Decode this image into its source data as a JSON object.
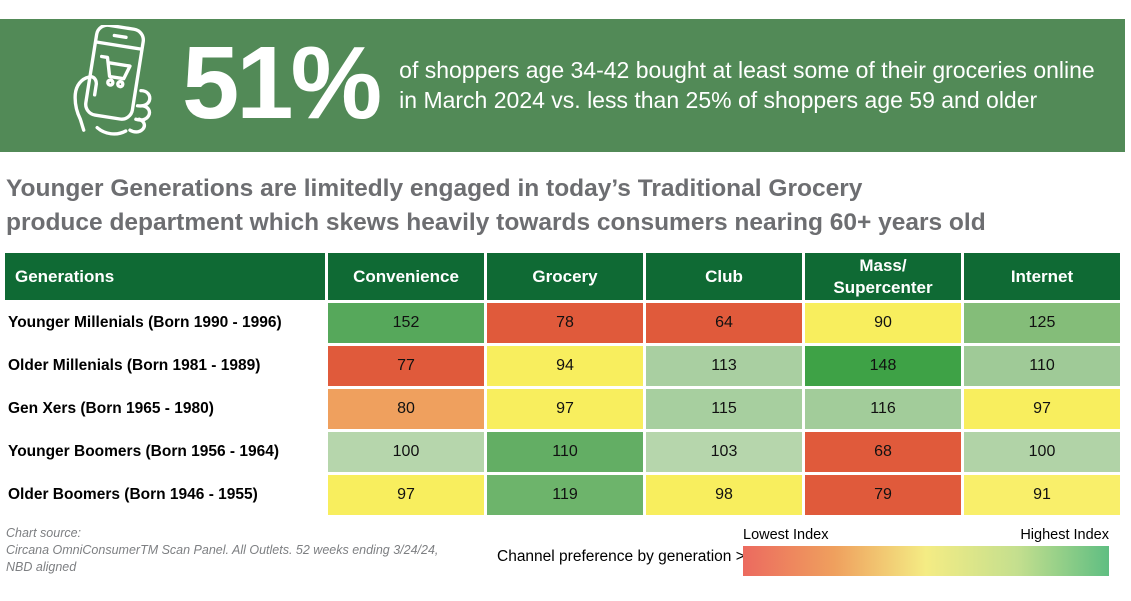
{
  "banner": {
    "bg_color": "#528a57",
    "icon": "phone-shopping-cart-in-hand-icon",
    "stat": "51%",
    "description_line1": "of shoppers age 34-42 bought at least some of their groceries online",
    "description_line2": "in March 2024 vs. less than 25% of shoppers age 59 and older"
  },
  "headline": {
    "line1": "Younger Generations are limitedly engaged in today’s Traditional Grocery",
    "line2": "produce department which skews heavily towards consumers nearing 60+ years old"
  },
  "chart_data": {
    "type": "heatmap",
    "title": "Younger Generations are limitedly engaged in today’s Traditional Grocery produce department which skews heavily towards consumers nearing 60+ years old",
    "header_bg": "#0f6a34",
    "columns": [
      "Generations",
      "Convenience",
      "Grocery",
      "Club",
      "Mass/\nSupercenter",
      "Internet"
    ],
    "rows": [
      {
        "label": "Younger Millenials (Born 1990 - 1996)",
        "values": [
          152,
          78,
          64,
          90,
          125
        ],
        "colors": [
          "#56a85b",
          "#e05a3b",
          "#e05a3b",
          "#f8ee5e",
          "#84bd79"
        ]
      },
      {
        "label": "Older Millenials (Born 1981 - 1989)",
        "values": [
          77,
          94,
          113,
          148,
          110
        ],
        "colors": [
          "#e05a3b",
          "#f8ee5e",
          "#a9cfa1",
          "#3ea246",
          "#9fca97"
        ]
      },
      {
        "label": "Gen Xers (Born 1965 - 1980)",
        "values": [
          80,
          97,
          115,
          116,
          97
        ],
        "colors": [
          "#efa05e",
          "#f8ee5e",
          "#a7cf9f",
          "#a2cc9a",
          "#f8ee5e"
        ]
      },
      {
        "label": "Younger Boomers (Born 1956 - 1964)",
        "values": [
          100,
          110,
          103,
          68,
          100
        ],
        "colors": [
          "#b6d6ac",
          "#63ae64",
          "#b6d6ac",
          "#e05a3b",
          "#b1d3a7"
        ]
      },
      {
        "label": "Older Boomers (Born 1946 - 1955)",
        "values": [
          97,
          119,
          98,
          79,
          91
        ],
        "colors": [
          "#f8ee5e",
          "#6db46b",
          "#f8ee5e",
          "#e05a3b",
          "#f9ef6a"
        ]
      }
    ],
    "legend": {
      "caption": "Channel preference by generation >",
      "low_label": "Lowest Index",
      "high_label": "Highest Index",
      "gradient_stops": [
        "#ec6a5f",
        "#efa05e",
        "#f4ec84",
        "#c4df8e",
        "#5fbe82"
      ],
      "position": "bottom-right"
    }
  },
  "footer": {
    "source_line1": "Chart source:",
    "source_line2": "Circana OmniConsumerTM Scan Panel. All Outlets. 52 weeks ending 3/24/24,",
    "source_line3": "NBD aligned"
  }
}
